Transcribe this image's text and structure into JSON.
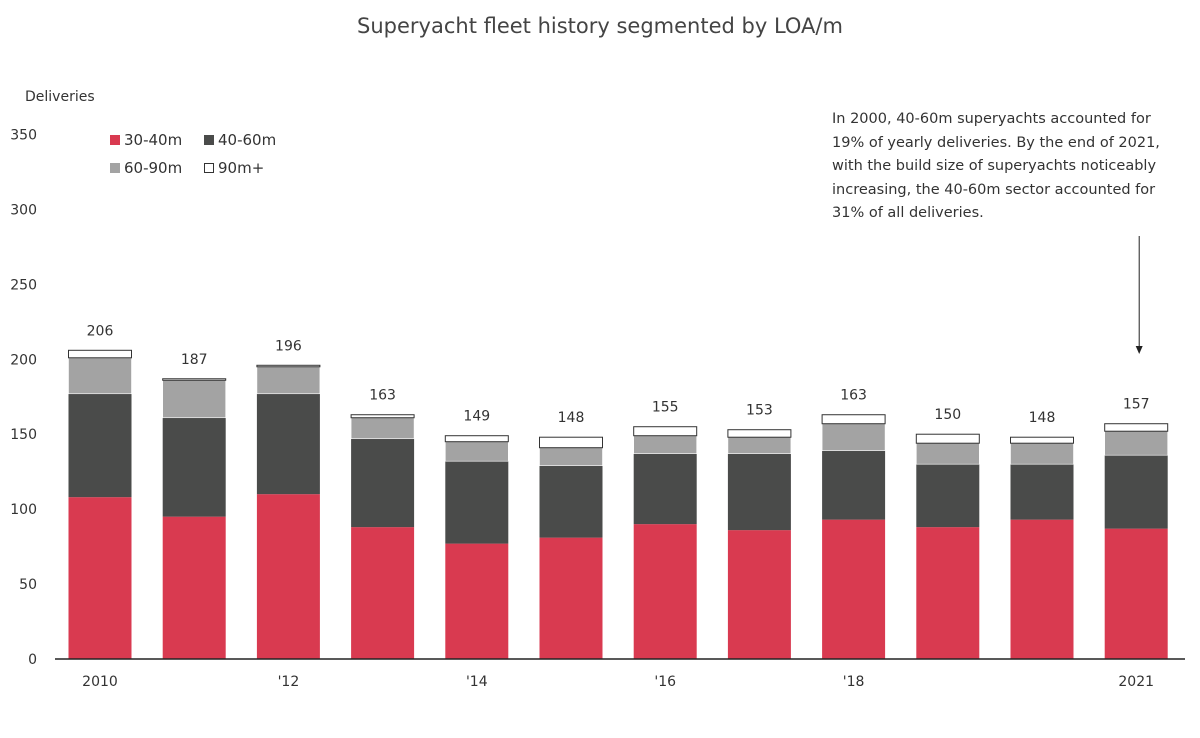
{
  "chart_data": {
    "type": "bar",
    "stacked": true,
    "title": "Superyacht fleet history segmented by LOA/m",
    "ylabel": "Deliveries",
    "xlabel": "",
    "ylim": [
      0,
      350
    ],
    "yticks": [
      0,
      50,
      100,
      150,
      200,
      250,
      300,
      350
    ],
    "grid": false,
    "legend_position": "top-left",
    "categories": [
      "2010",
      "2011",
      "2012",
      "2013",
      "2014",
      "2015",
      "2016",
      "2017",
      "2018",
      "2019",
      "2020",
      "2021"
    ],
    "x_tick_labels": [
      "2010",
      "",
      "'12",
      "",
      "'14",
      "",
      "'16",
      "",
      "'18",
      "",
      "",
      "2021"
    ],
    "series": [
      {
        "name": "30-40m",
        "color": "#d93a50",
        "values": [
          108,
          95,
          110,
          88,
          77,
          81,
          90,
          86,
          93,
          88,
          93,
          87
        ]
      },
      {
        "name": "40-60m",
        "color": "#4a4b4a",
        "values": [
          69,
          66,
          67,
          59,
          55,
          48,
          47,
          51,
          46,
          42,
          37,
          49
        ]
      },
      {
        "name": "60-90m",
        "color": "#a3a3a3",
        "values": [
          24,
          25,
          18,
          14,
          13,
          12,
          12,
          11,
          18,
          14,
          14,
          16
        ]
      },
      {
        "name": "90m+",
        "color": "#ffffff",
        "values": [
          5,
          1,
          1,
          2,
          4,
          7,
          6,
          5,
          6,
          6,
          4,
          5
        ]
      }
    ],
    "totals": [
      206,
      187,
      196,
      163,
      149,
      148,
      155,
      153,
      163,
      150,
      148,
      157
    ],
    "annotation": "In 2000, 40-60m superyachts accounted for 19% of yearly deliveries.  By the end of 2021, with the build size of superyachts noticeably increasing, the 40-60m sector accounted for 31% of all deliveries.",
    "annotation_target": "2021"
  }
}
